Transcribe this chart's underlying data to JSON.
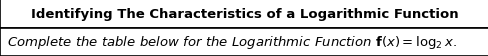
{
  "title": "Identifying The Characteristics of a Logarithmic Function",
  "subtitle_italic": "$\\it{Complete\\ the\\ table\\ below\\ for\\ the\\ Logarithmic\\ Function\\ }$",
  "subtitle_formula": "$\\mathbf{f(x)} = \\log_2 x.$",
  "title_fontsize": 9.5,
  "subtitle_fontsize": 9.5,
  "bg_color": "#ffffff",
  "border_color": "#000000",
  "fig_width": 4.89,
  "fig_height": 0.57,
  "dpi": 100
}
